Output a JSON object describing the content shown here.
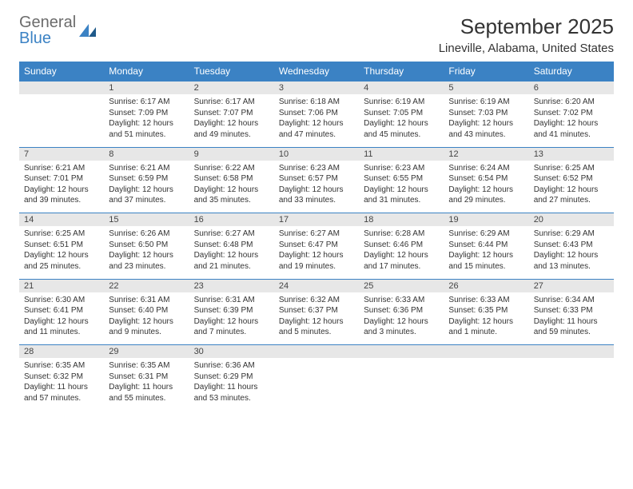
{
  "logo": {
    "text1": "General",
    "text2": "Blue"
  },
  "title": "September 2025",
  "subtitle": "Lineville, Alabama, United States",
  "colors": {
    "header_bg": "#3b82c4",
    "header_text": "#ffffff",
    "daynum_bg": "#e7e7e7",
    "border": "#3b82c4",
    "text": "#333333",
    "logo_gray": "#6b6b6b",
    "logo_blue": "#3b82c4"
  },
  "weekdays": [
    "Sunday",
    "Monday",
    "Tuesday",
    "Wednesday",
    "Thursday",
    "Friday",
    "Saturday"
  ],
  "weeks": [
    [
      null,
      {
        "n": "1",
        "sr": "Sunrise: 6:17 AM",
        "ss": "Sunset: 7:09 PM",
        "dl": "Daylight: 12 hours and 51 minutes."
      },
      {
        "n": "2",
        "sr": "Sunrise: 6:17 AM",
        "ss": "Sunset: 7:07 PM",
        "dl": "Daylight: 12 hours and 49 minutes."
      },
      {
        "n": "3",
        "sr": "Sunrise: 6:18 AM",
        "ss": "Sunset: 7:06 PM",
        "dl": "Daylight: 12 hours and 47 minutes."
      },
      {
        "n": "4",
        "sr": "Sunrise: 6:19 AM",
        "ss": "Sunset: 7:05 PM",
        "dl": "Daylight: 12 hours and 45 minutes."
      },
      {
        "n": "5",
        "sr": "Sunrise: 6:19 AM",
        "ss": "Sunset: 7:03 PM",
        "dl": "Daylight: 12 hours and 43 minutes."
      },
      {
        "n": "6",
        "sr": "Sunrise: 6:20 AM",
        "ss": "Sunset: 7:02 PM",
        "dl": "Daylight: 12 hours and 41 minutes."
      }
    ],
    [
      {
        "n": "7",
        "sr": "Sunrise: 6:21 AM",
        "ss": "Sunset: 7:01 PM",
        "dl": "Daylight: 12 hours and 39 minutes."
      },
      {
        "n": "8",
        "sr": "Sunrise: 6:21 AM",
        "ss": "Sunset: 6:59 PM",
        "dl": "Daylight: 12 hours and 37 minutes."
      },
      {
        "n": "9",
        "sr": "Sunrise: 6:22 AM",
        "ss": "Sunset: 6:58 PM",
        "dl": "Daylight: 12 hours and 35 minutes."
      },
      {
        "n": "10",
        "sr": "Sunrise: 6:23 AM",
        "ss": "Sunset: 6:57 PM",
        "dl": "Daylight: 12 hours and 33 minutes."
      },
      {
        "n": "11",
        "sr": "Sunrise: 6:23 AM",
        "ss": "Sunset: 6:55 PM",
        "dl": "Daylight: 12 hours and 31 minutes."
      },
      {
        "n": "12",
        "sr": "Sunrise: 6:24 AM",
        "ss": "Sunset: 6:54 PM",
        "dl": "Daylight: 12 hours and 29 minutes."
      },
      {
        "n": "13",
        "sr": "Sunrise: 6:25 AM",
        "ss": "Sunset: 6:52 PM",
        "dl": "Daylight: 12 hours and 27 minutes."
      }
    ],
    [
      {
        "n": "14",
        "sr": "Sunrise: 6:25 AM",
        "ss": "Sunset: 6:51 PM",
        "dl": "Daylight: 12 hours and 25 minutes."
      },
      {
        "n": "15",
        "sr": "Sunrise: 6:26 AM",
        "ss": "Sunset: 6:50 PM",
        "dl": "Daylight: 12 hours and 23 minutes."
      },
      {
        "n": "16",
        "sr": "Sunrise: 6:27 AM",
        "ss": "Sunset: 6:48 PM",
        "dl": "Daylight: 12 hours and 21 minutes."
      },
      {
        "n": "17",
        "sr": "Sunrise: 6:27 AM",
        "ss": "Sunset: 6:47 PM",
        "dl": "Daylight: 12 hours and 19 minutes."
      },
      {
        "n": "18",
        "sr": "Sunrise: 6:28 AM",
        "ss": "Sunset: 6:46 PM",
        "dl": "Daylight: 12 hours and 17 minutes."
      },
      {
        "n": "19",
        "sr": "Sunrise: 6:29 AM",
        "ss": "Sunset: 6:44 PM",
        "dl": "Daylight: 12 hours and 15 minutes."
      },
      {
        "n": "20",
        "sr": "Sunrise: 6:29 AM",
        "ss": "Sunset: 6:43 PM",
        "dl": "Daylight: 12 hours and 13 minutes."
      }
    ],
    [
      {
        "n": "21",
        "sr": "Sunrise: 6:30 AM",
        "ss": "Sunset: 6:41 PM",
        "dl": "Daylight: 12 hours and 11 minutes."
      },
      {
        "n": "22",
        "sr": "Sunrise: 6:31 AM",
        "ss": "Sunset: 6:40 PM",
        "dl": "Daylight: 12 hours and 9 minutes."
      },
      {
        "n": "23",
        "sr": "Sunrise: 6:31 AM",
        "ss": "Sunset: 6:39 PM",
        "dl": "Daylight: 12 hours and 7 minutes."
      },
      {
        "n": "24",
        "sr": "Sunrise: 6:32 AM",
        "ss": "Sunset: 6:37 PM",
        "dl": "Daylight: 12 hours and 5 minutes."
      },
      {
        "n": "25",
        "sr": "Sunrise: 6:33 AM",
        "ss": "Sunset: 6:36 PM",
        "dl": "Daylight: 12 hours and 3 minutes."
      },
      {
        "n": "26",
        "sr": "Sunrise: 6:33 AM",
        "ss": "Sunset: 6:35 PM",
        "dl": "Daylight: 12 hours and 1 minute."
      },
      {
        "n": "27",
        "sr": "Sunrise: 6:34 AM",
        "ss": "Sunset: 6:33 PM",
        "dl": "Daylight: 11 hours and 59 minutes."
      }
    ],
    [
      {
        "n": "28",
        "sr": "Sunrise: 6:35 AM",
        "ss": "Sunset: 6:32 PM",
        "dl": "Daylight: 11 hours and 57 minutes."
      },
      {
        "n": "29",
        "sr": "Sunrise: 6:35 AM",
        "ss": "Sunset: 6:31 PM",
        "dl": "Daylight: 11 hours and 55 minutes."
      },
      {
        "n": "30",
        "sr": "Sunrise: 6:36 AM",
        "ss": "Sunset: 6:29 PM",
        "dl": "Daylight: 11 hours and 53 minutes."
      },
      null,
      null,
      null,
      null
    ]
  ]
}
